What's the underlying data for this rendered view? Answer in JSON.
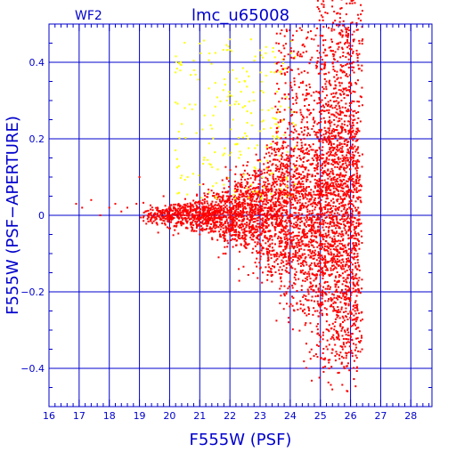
{
  "chart_data": {
    "type": "scatter",
    "title": "lmc_u65008",
    "subtitle": "WF2",
    "xlabel": "F555W (PSF)",
    "ylabel": "F555W (PSF−APERTURE)",
    "xlim": [
      16,
      28.7
    ],
    "ylim": [
      -0.5,
      0.5
    ],
    "x_ticks": [
      16,
      17,
      18,
      19,
      20,
      21,
      22,
      23,
      24,
      25,
      26,
      27,
      28
    ],
    "x_tick_labels": [
      "16",
      "17",
      "18",
      "19",
      "20",
      "21",
      "22",
      "23",
      "24",
      "25",
      "26",
      "27",
      "28"
    ],
    "y_ticks": [
      -0.4,
      -0.2,
      0,
      0.2,
      0.4
    ],
    "y_tick_labels": [
      "−0.4",
      "−0.2",
      "0",
      "0.2",
      "0.4"
    ],
    "grid": true,
    "axis_color": "#0000cc",
    "series": [
      {
        "color": "#ff0000",
        "points": [
          [
            16.9,
            0.03
          ],
          [
            17.1,
            0.02
          ],
          [
            17.4,
            0.04
          ],
          [
            17.7,
            0.0
          ],
          [
            18.0,
            0.02
          ],
          [
            18.2,
            0.03
          ],
          [
            18.4,
            0.01
          ],
          [
            18.6,
            0.02
          ],
          [
            18.9,
            0.03
          ],
          [
            19.0,
            0.1
          ],
          [
            19.2,
            0.01
          ],
          [
            19.4,
            0.0
          ],
          [
            19.6,
            0.02
          ],
          [
            19.8,
            0.05
          ],
          [
            20.0,
            0.01
          ],
          [
            20.1,
            -0.01
          ],
          [
            20.3,
            0.03
          ],
          [
            20.5,
            0.0
          ],
          [
            20.7,
            0.02
          ],
          [
            20.9,
            -0.01
          ],
          [
            21.1,
            0.04
          ],
          [
            21.3,
            0.0
          ],
          [
            21.5,
            -0.02
          ],
          [
            21.7,
            0.02
          ],
          [
            21.9,
            0.05
          ],
          [
            22.1,
            -0.02
          ],
          [
            22.3,
            0.0
          ],
          [
            22.5,
            0.03
          ],
          [
            22.7,
            -0.03
          ],
          [
            22.9,
            0.06
          ],
          [
            23.1,
            -0.04
          ],
          [
            23.3,
            0.02
          ],
          [
            23.5,
            -0.05
          ],
          [
            23.7,
            0.08
          ],
          [
            23.9,
            -0.06
          ],
          [
            24.1,
            0.1
          ],
          [
            24.3,
            -0.08
          ],
          [
            24.5,
            0.12
          ],
          [
            24.7,
            -0.1
          ],
          [
            24.9,
            0.15
          ],
          [
            25.1,
            -0.15
          ],
          [
            25.3,
            0.2
          ],
          [
            25.5,
            -0.2
          ],
          [
            25.7,
            0.3
          ],
          [
            25.9,
            -0.3
          ],
          [
            26.1,
            0.4
          ],
          [
            25.2,
            0.35
          ],
          [
            25.4,
            -0.35
          ],
          [
            25.6,
            0.45
          ],
          [
            25.8,
            -0.4
          ],
          [
            26.0,
            0.2
          ],
          [
            26.3,
            0.1
          ],
          [
            26.4,
            0.46
          ],
          [
            25.9,
            -0.46
          ],
          [
            24.8,
            0.3
          ],
          [
            24.6,
            -0.2
          ],
          [
            24.4,
            0.25
          ],
          [
            24.2,
            0.22
          ],
          [
            24.0,
            0.2
          ],
          [
            25.0,
            0.47
          ],
          [
            24.9,
            0.43
          ]
        ]
      },
      {
        "color": "#ffff00",
        "points": [
          [
            20.2,
            0.17
          ],
          [
            20.6,
            0.1
          ],
          [
            21.0,
            0.08
          ],
          [
            21.3,
            0.06
          ],
          [
            21.6,
            0.12
          ],
          [
            21.9,
            0.3
          ],
          [
            22.1,
            0.25
          ],
          [
            22.3,
            0.15
          ],
          [
            22.5,
            0.35
          ],
          [
            22.6,
            0.2
          ],
          [
            22.8,
            0.3
          ],
          [
            23.0,
            0.22
          ],
          [
            23.2,
            0.44
          ],
          [
            23.4,
            0.28
          ],
          [
            23.6,
            0.27
          ],
          [
            23.8,
            0.21
          ],
          [
            22.0,
            0.46
          ],
          [
            22.7,
            0.46
          ],
          [
            21.8,
            0.08
          ],
          [
            22.4,
            0.1
          ]
        ]
      }
    ]
  }
}
